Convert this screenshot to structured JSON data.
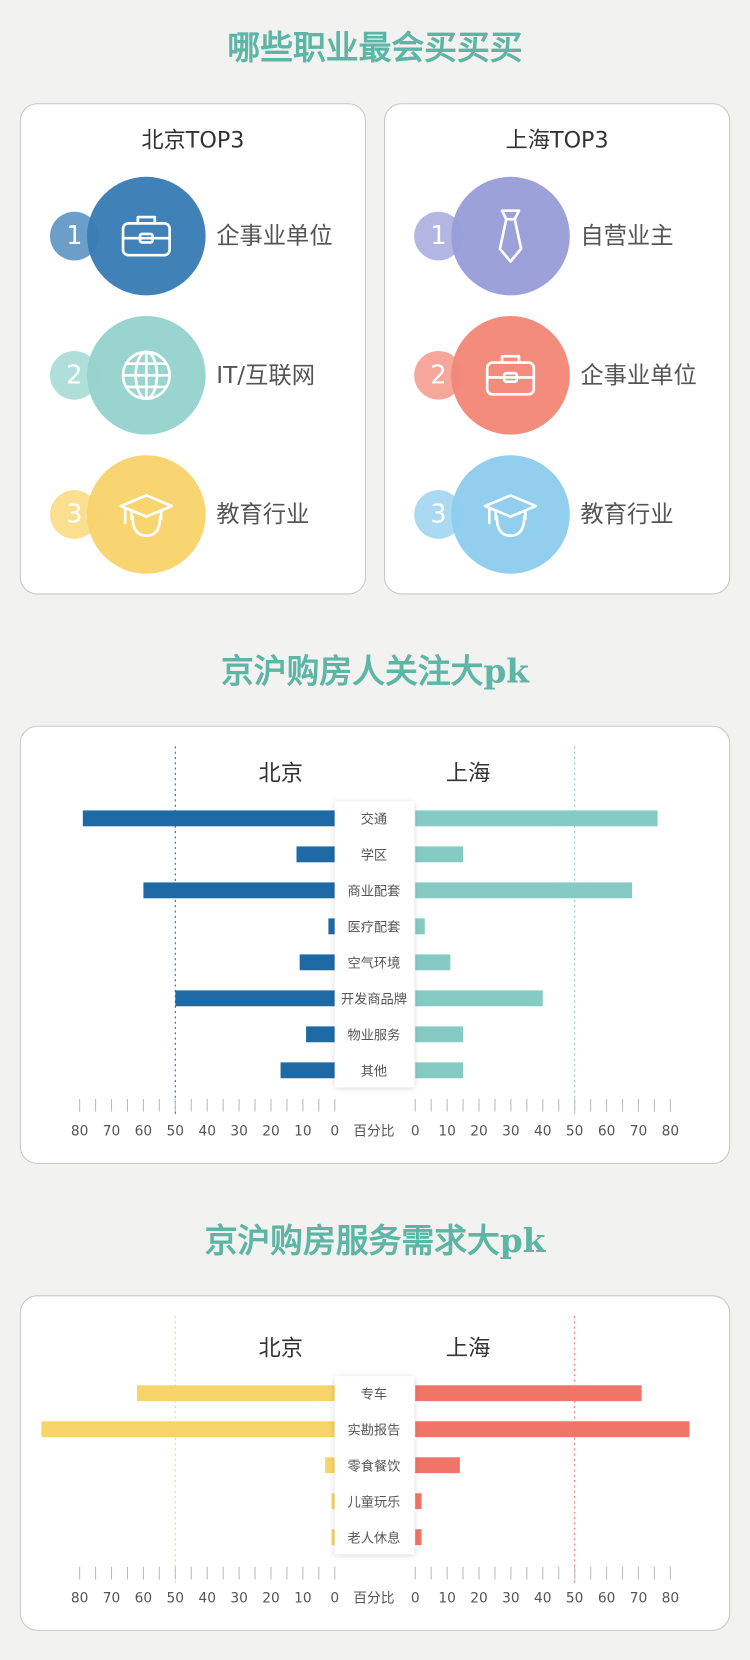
{
  "title": "哪些职业最会买买买",
  "rankings": [
    {
      "title": "北京TOP3",
      "items": [
        {
          "rank": 1,
          "label": "企事业单位",
          "color": "#3a7db5",
          "icon": "briefcase"
        },
        {
          "rank": 2,
          "label": "IT/互联网",
          "color": "#96d4cc",
          "icon": "globe"
        },
        {
          "rank": 3,
          "label": "教育行业",
          "color": "#f9d46c",
          "icon": "cap"
        }
      ]
    },
    {
      "title": "上海TOP3",
      "items": [
        {
          "rank": 1,
          "label": "自营业主",
          "color": "#9a9ed9",
          "icon": "tie"
        },
        {
          "rank": 2,
          "label": "企事业单位",
          "color": "#f4887a",
          "icon": "briefcase"
        },
        {
          "rank": 3,
          "label": "教育行业",
          "color": "#8ecdee",
          "icon": "cap"
        }
      ]
    }
  ],
  "chart_data": [
    {
      "type": "butterfly",
      "title": "京沪购房人关注大pk",
      "center_label": "百分比",
      "categories": [
        "交通",
        "学区",
        "商业配套",
        "医疗配套",
        "空气环境",
        "开发商品牌",
        "物业服务",
        "其他"
      ],
      "series": [
        {
          "name": "北京",
          "color": "#1f6aa5",
          "values": [
            79,
            12,
            60,
            2,
            11,
            50,
            9,
            17
          ]
        },
        {
          "name": "上海",
          "color": "#85cbc4",
          "values": [
            76,
            15,
            68,
            3,
            11,
            40,
            15,
            15
          ]
        }
      ],
      "xlim": [
        0,
        80
      ],
      "xticks": [
        0,
        10,
        20,
        30,
        40,
        50,
        60,
        70,
        80
      ],
      "minor_xticks": [
        5,
        15,
        25,
        35,
        45,
        55,
        65,
        75
      ],
      "reference_line": 50
    },
    {
      "type": "butterfly",
      "title": "京沪购房服务需求大pk",
      "center_label": "百分比",
      "categories": [
        "专车",
        "实勘报告",
        "零食餐饮",
        "儿童玩乐",
        "老人休息"
      ],
      "series": [
        {
          "name": "北京",
          "color": "#f7d46a",
          "values": [
            62,
            92,
            3,
            1,
            1
          ]
        },
        {
          "name": "上海",
          "color": "#f07468",
          "values": [
            71,
            86,
            14,
            2,
            2
          ]
        }
      ],
      "xlim": [
        0,
        80
      ],
      "xticks": [
        0,
        10,
        20,
        30,
        40,
        50,
        60,
        70,
        80
      ],
      "minor_xticks": [
        5,
        15,
        25,
        35,
        45,
        55,
        65,
        75
      ],
      "reference_line": 50
    }
  ]
}
